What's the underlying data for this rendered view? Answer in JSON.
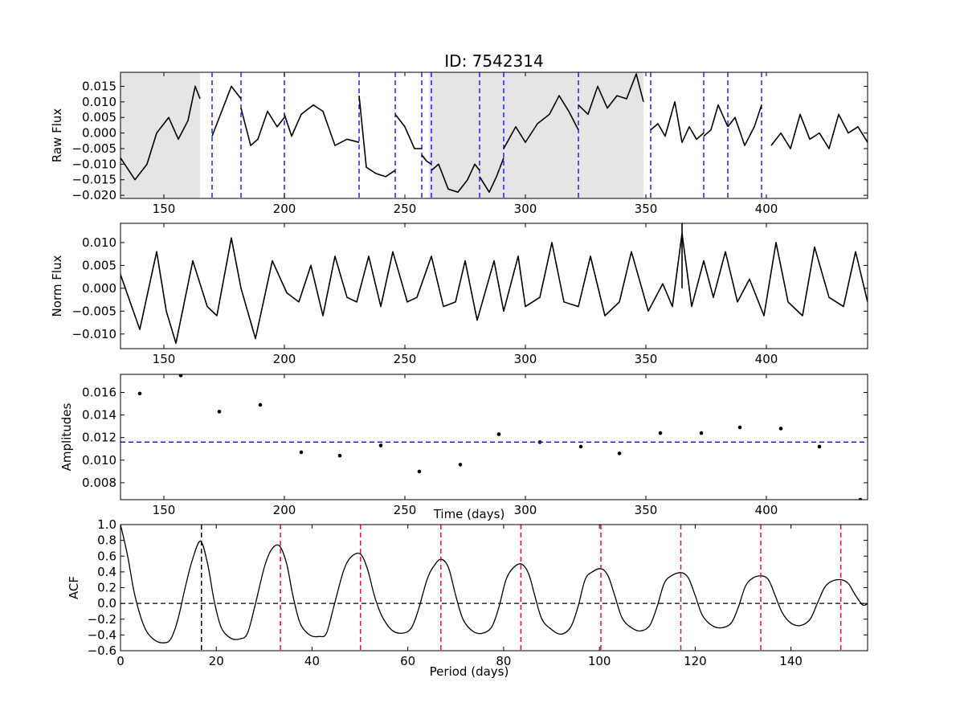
{
  "title": "ID: 7542314",
  "chart_data": [
    {
      "panel": "raw-flux",
      "type": "line",
      "ylabel": "Raw Flux",
      "xlabel": "",
      "xlim": [
        132,
        442
      ],
      "ylim": [
        -0.021,
        0.0195
      ],
      "xticks": [
        150,
        200,
        250,
        300,
        350,
        400
      ],
      "yticks": [
        -0.02,
        -0.015,
        -0.01,
        -0.005,
        0.0,
        0.005,
        0.01,
        0.015
      ],
      "ytick_labels": [
        "−0.020",
        "−0.015",
        "−0.010",
        "−0.005",
        "0.000",
        "0.005",
        "0.010",
        "0.015"
      ],
      "shaded_regions": [
        [
          132,
          165
        ],
        [
          260,
          349
        ]
      ],
      "dashed_lines_x": [
        170,
        182,
        200,
        231,
        246,
        257,
        261,
        281,
        291,
        322,
        352,
        374,
        384,
        398
      ],
      "dashed_color": "#0000ff",
      "series": [
        {
          "segments": [
            {
              "x": [
                132,
                138,
                143,
                147,
                152,
                156,
                160,
                163,
                165
              ],
              "y": [
                -0.008,
                -0.015,
                -0.01,
                0.0,
                0.005,
                -0.002,
                0.004,
                0.015,
                0.011
              ]
            },
            {
              "x": [
                170,
                174,
                178,
                182
              ],
              "y": [
                -0.001,
                0.007,
                0.015,
                0.011
              ]
            },
            {
              "x": [
                182,
                186,
                189,
                193,
                197,
                200
              ],
              "y": [
                0.008,
                -0.004,
                -0.002,
                0.007,
                0.002,
                0.005
              ]
            },
            {
              "x": [
                200,
                203,
                207,
                212,
                216,
                221,
                226,
                231
              ],
              "y": [
                0.006,
                -0.001,
                0.006,
                0.009,
                0.007,
                -0.004,
                -0.002,
                -0.003
              ]
            },
            {
              "x": [
                231,
                234,
                238,
                242,
                246
              ],
              "y": [
                0.012,
                -0.011,
                -0.013,
                -0.014,
                -0.012
              ]
            },
            {
              "x": [
                246,
                250,
                254,
                257
              ],
              "y": [
                0.006,
                0.002,
                -0.005,
                -0.005
              ]
            },
            {
              "x": [
                257,
                259,
                261
              ],
              "y": [
                -0.007,
                -0.009,
                -0.01
              ]
            },
            {
              "x": [
                261,
                264,
                268,
                272,
                276,
                279,
                281
              ],
              "y": [
                -0.012,
                -0.01,
                -0.018,
                -0.019,
                -0.015,
                -0.01,
                -0.012
              ]
            },
            {
              "x": [
                281,
                285,
                288,
                291
              ],
              "y": [
                -0.014,
                -0.019,
                -0.014,
                -0.008
              ]
            },
            {
              "x": [
                291,
                296,
                300,
                305,
                310,
                314,
                318,
                322
              ],
              "y": [
                -0.005,
                0.002,
                -0.003,
                0.003,
                0.006,
                0.012,
                0.007,
                0.001
              ]
            },
            {
              "x": [
                322,
                326,
                330,
                334,
                338,
                342,
                346,
                349
              ],
              "y": [
                0.009,
                0.006,
                0.015,
                0.008,
                0.012,
                0.011,
                0.019,
                0.01
              ]
            },
            {
              "x": [
                352,
                355,
                358,
                362,
                365,
                368,
                371,
                374
              ],
              "y": [
                0.001,
                0.003,
                -0.001,
                0.01,
                -0.003,
                0.002,
                -0.002,
                0.0
              ]
            },
            {
              "x": [
                374,
                377,
                380,
                384
              ],
              "y": [
                -0.001,
                0.001,
                0.009,
                0.002
              ]
            },
            {
              "x": [
                384,
                387,
                391,
                395,
                398
              ],
              "y": [
                0.002,
                0.005,
                -0.004,
                0.002,
                0.009
              ]
            },
            {
              "x": [
                402,
                406,
                410,
                414,
                418,
                422,
                426,
                430,
                434,
                438,
                442
              ],
              "y": [
                -0.004,
                0.0,
                -0.005,
                0.006,
                -0.002,
                0.0,
                -0.005,
                0.006,
                0.0,
                0.002,
                -0.003
              ]
            }
          ]
        }
      ]
    },
    {
      "panel": "norm-flux",
      "type": "line",
      "ylabel": "Norm Flux",
      "xlabel": "",
      "xlim": [
        132,
        442
      ],
      "ylim": [
        -0.0132,
        0.0142
      ],
      "xticks": [
        150,
        200,
        250,
        300,
        350,
        400
      ],
      "yticks": [
        -0.01,
        -0.005,
        0.0,
        0.005,
        0.01
      ],
      "ytick_labels": [
        "−0.010",
        "−0.005",
        "0.000",
        "0.005",
        "0.010"
      ],
      "series": [
        {
          "x": [
            132,
            140,
            147,
            151,
            155,
            162,
            168,
            172,
            178,
            182,
            188,
            195,
            201,
            206,
            211,
            216,
            221,
            226,
            230,
            235,
            240,
            245,
            251,
            255,
            261,
            266,
            271,
            275,
            280,
            287,
            291,
            297,
            300,
            306,
            311,
            316,
            322,
            327,
            333,
            339,
            344,
            351,
            357,
            361,
            365,
            369,
            374,
            378,
            383,
            388,
            393,
            399,
            404,
            409,
            415,
            420,
            426,
            432,
            437,
            442
          ],
          "y": [
            0.003,
            -0.009,
            0.008,
            -0.005,
            -0.012,
            0.006,
            -0.004,
            -0.006,
            0.011,
            0.0,
            -0.011,
            0.006,
            -0.001,
            -0.003,
            0.005,
            -0.006,
            0.007,
            -0.002,
            -0.003,
            0.007,
            -0.004,
            0.008,
            -0.003,
            -0.002,
            0.007,
            -0.004,
            -0.003,
            0.006,
            -0.007,
            0.006,
            -0.005,
            0.007,
            -0.004,
            -0.002,
            0.01,
            -0.003,
            -0.004,
            0.007,
            -0.006,
            -0.003,
            0.008,
            -0.005,
            0.001,
            -0.004,
            0.012,
            -0.004,
            0.006,
            -0.002,
            0.008,
            -0.003,
            0.002,
            -0.006,
            0.01,
            -0.003,
            -0.006,
            0.009,
            -0.002,
            -0.004,
            0.008,
            -0.003
          ]
        }
      ],
      "spike": {
        "x": 365,
        "y_from": 0.0,
        "y_to": 0.0142
      }
    },
    {
      "panel": "amplitudes",
      "type": "scatter",
      "ylabel": "Amplitudes",
      "xlabel": "Time (days)",
      "xlim": [
        132,
        442
      ],
      "ylim": [
        0.0065,
        0.0176
      ],
      "xticks": [
        150,
        200,
        250,
        300,
        350,
        400
      ],
      "yticks": [
        0.008,
        0.01,
        0.012,
        0.014,
        0.016
      ],
      "ytick_labels": [
        "0.008",
        "0.010",
        "0.012",
        "0.014",
        "0.016"
      ],
      "series": [
        {
          "x": [
            140,
            157,
            173,
            190,
            207,
            223,
            240,
            256,
            273,
            289,
            306,
            323,
            339,
            356,
            373,
            389,
            406,
            422,
            439
          ],
          "y": [
            0.0159,
            0.0175,
            0.0143,
            0.0149,
            0.0107,
            0.0104,
            0.0113,
            0.009,
            0.0096,
            0.0123,
            0.0116,
            0.0112,
            0.0106,
            0.0124,
            0.0124,
            0.0129,
            0.0128,
            0.0112,
            0.0065
          ]
        }
      ],
      "hline": 0.0116,
      "hline_color": "#0000ff"
    },
    {
      "panel": "acf",
      "type": "line",
      "ylabel": "ACF",
      "xlabel": "Period (days)",
      "xlim": [
        0,
        156
      ],
      "ylim": [
        -0.6,
        1.0
      ],
      "xticks": [
        0,
        20,
        40,
        60,
        80,
        100,
        120,
        140
      ],
      "yticks": [
        -0.6,
        -0.4,
        -0.2,
        0.0,
        0.2,
        0.4,
        0.6,
        0.8,
        1.0
      ],
      "ytick_labels": [
        "−0.6",
        "−0.4",
        "−0.2",
        "0.0",
        "0.2",
        "0.4",
        "0.6",
        "0.8",
        "1.0"
      ],
      "series": [
        {
          "x": [
            0,
            1.5,
            3,
            5,
            7,
            9,
            10.5,
            12,
            13.5,
            15,
            16.7,
            18.2,
            19.5,
            21,
            23,
            25,
            26.5,
            28,
            30,
            31.5,
            33.2,
            34.7,
            36,
            37.5,
            39.5,
            41.5,
            43,
            44.5,
            46.5,
            48,
            50,
            51.5,
            53,
            54.5,
            56.5,
            58.5,
            60.5,
            62,
            64,
            65.5,
            67,
            68.5,
            70,
            71.5,
            73.5,
            75.5,
            77.5,
            79,
            80.5,
            82,
            83.7,
            85.2,
            86.5,
            88,
            90,
            92,
            94,
            95.5,
            97,
            98.5,
            100.4,
            101.8,
            103.2,
            104.7,
            106.5,
            108.5,
            110.5,
            112,
            113.5,
            115,
            117.1,
            118.6,
            120,
            121.5,
            123.5,
            125.5,
            127.5,
            129,
            130.5,
            132,
            133.8,
            135.3,
            136.7,
            138.2,
            140,
            142,
            144,
            145.5,
            147,
            148.5,
            150.5,
            152,
            153.5,
            155,
            156
          ],
          "y": [
            1.0,
            0.6,
            0.1,
            -0.3,
            -0.46,
            -0.5,
            -0.45,
            -0.2,
            0.2,
            0.55,
            0.79,
            0.5,
            0.05,
            -0.3,
            -0.44,
            -0.45,
            -0.38,
            -0.05,
            0.45,
            0.68,
            0.73,
            0.5,
            0.1,
            -0.25,
            -0.4,
            -0.42,
            -0.38,
            -0.05,
            0.4,
            0.58,
            0.63,
            0.45,
            0.1,
            -0.15,
            -0.33,
            -0.38,
            -0.33,
            -0.12,
            0.3,
            0.48,
            0.56,
            0.45,
            0.1,
            -0.2,
            -0.35,
            -0.38,
            -0.3,
            -0.05,
            0.3,
            0.45,
            0.5,
            0.38,
            0.1,
            -0.2,
            -0.33,
            -0.39,
            -0.3,
            -0.05,
            0.3,
            0.4,
            0.44,
            0.35,
            0.1,
            -0.18,
            -0.3,
            -0.35,
            -0.28,
            -0.05,
            0.25,
            0.35,
            0.39,
            0.32,
            0.1,
            -0.15,
            -0.28,
            -0.31,
            -0.25,
            -0.05,
            0.22,
            0.32,
            0.35,
            0.3,
            0.1,
            -0.12,
            -0.25,
            -0.28,
            -0.2,
            0.0,
            0.2,
            0.28,
            0.3,
            0.25,
            0.1,
            -0.02,
            0.0
          ]
        }
      ],
      "hline": 0.0,
      "hline_color": "#000000",
      "period_line_x": 16.9,
      "period_line_color": "#000000",
      "harmonic_lines_x": [
        33.4,
        50.1,
        66.9,
        83.6,
        100.3,
        117.0,
        133.7,
        150.4
      ],
      "harmonic_color": "#dc143c"
    }
  ]
}
